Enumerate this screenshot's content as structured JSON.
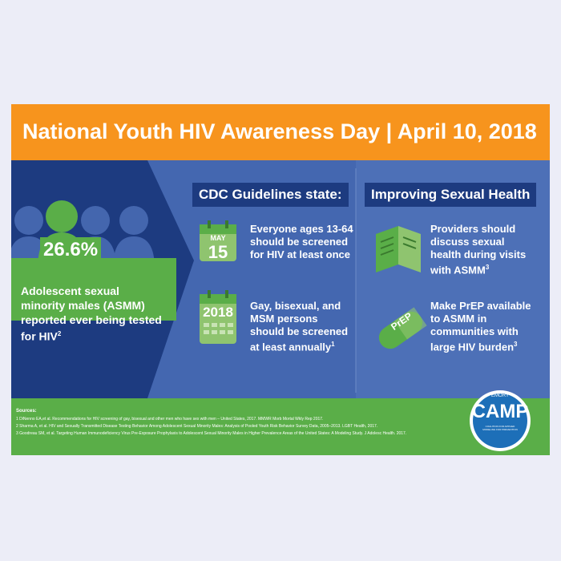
{
  "header": {
    "title": "National Youth HIV Awareness Day | April 10, 2018"
  },
  "stat": {
    "value": "26.6%",
    "description": "Adolescent sexual minority males (ASMM) reported ever being tested for HIV",
    "note": "2"
  },
  "guidelines": {
    "heading": "CDC Guidelines state:",
    "items": [
      {
        "icon": [
          "MAY",
          "15"
        ],
        "text": "Everyone ages 13-64 should be screened for HIV at least once"
      },
      {
        "icon": [
          "2018"
        ],
        "text": "Gay, bisexual, and MSM persons should be screened at least annually",
        "note": "1"
      }
    ]
  },
  "health": {
    "heading": "Improving Sexual Health",
    "items": [
      {
        "text": "Providers should discuss sexual health during visits with ASMM",
        "note": "3"
      },
      {
        "icon": [
          "PrEP"
        ],
        "text": "Make PrEP available to ASMM in communities with large HIV burden",
        "note": "3"
      }
    ]
  },
  "sources": {
    "heading": "Sources:",
    "items": [
      "1 DiNenno EA,et al. Recommendations for HIV screening of gay, bisexual and other men who have sex with men – United States, 2017. MMWR Morb Mortal Wkly Rep 2017.",
      "2 Sharma A, et al. HIV and Sexually Transmitted Disease Testing Behavior Among Adolescent Sexual Minority Males: Analysis of Pooled Youth Risk Behavior Survey Data, 2005–2013. LGBT Health, 2017.",
      "3 Goodreau SM, et al. Targeting Human Immunodeficiency Virus Pre-Exposure Prophylaxis to Adolescent Sexual Minority Males in Higher Prevalence Areas of the United States: A Modeling Study. J Adolesc Health. 2017."
    ]
  },
  "logo": {
    "top": "EMORY",
    "name": "CAMP",
    "tagline": "COALITION FOR APPLIED MODELING FOR PREVENTION"
  }
}
